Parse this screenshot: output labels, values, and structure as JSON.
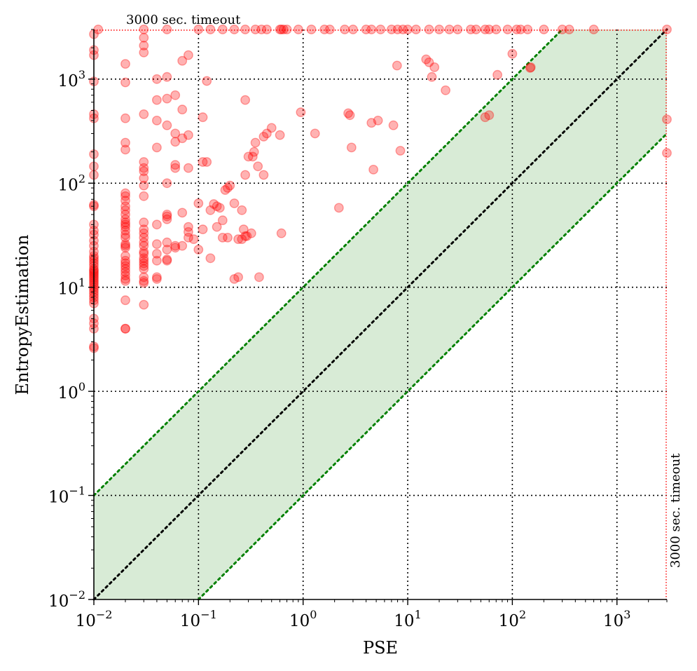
{
  "chart_data": {
    "type": "scatter",
    "xlabel": "PSE",
    "ylabel": "EntropyEstimation",
    "xscale": "log",
    "yscale": "log",
    "xlim": [
      0.01,
      3000
    ],
    "ylim": [
      0.01,
      3000
    ],
    "x_ticks": [
      {
        "base": "10",
        "exp": "−2",
        "value": 0.01
      },
      {
        "base": "10",
        "exp": "−1",
        "value": 0.1
      },
      {
        "base": "10",
        "exp": "0",
        "value": 1
      },
      {
        "base": "10",
        "exp": "1",
        "value": 10
      },
      {
        "base": "10",
        "exp": "2",
        "value": 100
      },
      {
        "base": "10",
        "exp": "3",
        "value": 1000
      }
    ],
    "y_ticks": [
      {
        "base": "10",
        "exp": "−2",
        "value": 0.01
      },
      {
        "base": "10",
        "exp": "−1",
        "value": 0.1
      },
      {
        "base": "10",
        "exp": "0",
        "value": 1
      },
      {
        "base": "10",
        "exp": "1",
        "value": 10
      },
      {
        "base": "10",
        "exp": "2",
        "value": 100
      },
      {
        "base": "10",
        "exp": "3",
        "value": 1000
      }
    ],
    "grid": true,
    "reference_lines": [
      {
        "kind": "y=x",
        "color": "#000000",
        "style": "dotted"
      },
      {
        "kind": "y=10x",
        "color": "#008000",
        "style": "dotted"
      },
      {
        "kind": "y=x/10",
        "color": "#008000",
        "style": "dotted"
      }
    ],
    "band_color": "#d8ebd6",
    "point_color": "#ff0000",
    "timeout_line_color": "#ff0000",
    "annotations": {
      "top": "3000 sec. timeout",
      "right": "3000 sec. timeout"
    },
    "points": [
      [
        0.01,
        2.6
      ],
      [
        0.01,
        2.7
      ],
      [
        0.01,
        4
      ],
      [
        0.01,
        4.5
      ],
      [
        0.01,
        5
      ],
      [
        0.01,
        7
      ],
      [
        0.01,
        7.5
      ],
      [
        0.01,
        8
      ],
      [
        0.01,
        8.5
      ],
      [
        0.01,
        9
      ],
      [
        0.01,
        9.5
      ],
      [
        0.01,
        10
      ],
      [
        0.01,
        10.5
      ],
      [
        0.01,
        11
      ],
      [
        0.01,
        11.5
      ],
      [
        0.01,
        12
      ],
      [
        0.01,
        12.5
      ],
      [
        0.01,
        13
      ],
      [
        0.01,
        13.5
      ],
      [
        0.01,
        14
      ],
      [
        0.01,
        14.5
      ],
      [
        0.01,
        15
      ],
      [
        0.01,
        16
      ],
      [
        0.01,
        17
      ],
      [
        0.01,
        18
      ],
      [
        0.01,
        19
      ],
      [
        0.01,
        20
      ],
      [
        0.01,
        22
      ],
      [
        0.01,
        25
      ],
      [
        0.01,
        28
      ],
      [
        0.01,
        32
      ],
      [
        0.01,
        35
      ],
      [
        0.01,
        40
      ],
      [
        0.01,
        60
      ],
      [
        0.01,
        62
      ],
      [
        0.01,
        120
      ],
      [
        0.01,
        145
      ],
      [
        0.01,
        190
      ],
      [
        0.01,
        420
      ],
      [
        0.01,
        460
      ],
      [
        0.01,
        950
      ],
      [
        0.01,
        1700
      ],
      [
        0.01,
        1900
      ],
      [
        0.01,
        2700
      ],
      [
        0.02,
        4
      ],
      [
        0.02,
        4
      ],
      [
        0.02,
        7.5
      ],
      [
        0.02,
        11.5
      ],
      [
        0.02,
        12
      ],
      [
        0.02,
        13
      ],
      [
        0.02,
        14
      ],
      [
        0.02,
        15
      ],
      [
        0.02,
        16
      ],
      [
        0.02,
        17
      ],
      [
        0.02,
        18
      ],
      [
        0.02,
        20
      ],
      [
        0.02,
        24
      ],
      [
        0.02,
        25
      ],
      [
        0.02,
        26
      ],
      [
        0.02,
        30
      ],
      [
        0.02,
        32
      ],
      [
        0.02,
        35
      ],
      [
        0.02,
        38
      ],
      [
        0.02,
        40
      ],
      [
        0.02,
        42
      ],
      [
        0.02,
        45
      ],
      [
        0.02,
        50
      ],
      [
        0.02,
        55
      ],
      [
        0.02,
        60
      ],
      [
        0.02,
        68
      ],
      [
        0.02,
        75
      ],
      [
        0.02,
        80
      ],
      [
        0.02,
        210
      ],
      [
        0.02,
        245
      ],
      [
        0.02,
        420
      ],
      [
        0.02,
        930
      ],
      [
        0.02,
        1400
      ],
      [
        0.03,
        6.8
      ],
      [
        0.03,
        11
      ],
      [
        0.03,
        11.5
      ],
      [
        0.03,
        12.5
      ],
      [
        0.03,
        15
      ],
      [
        0.03,
        16
      ],
      [
        0.03,
        17
      ],
      [
        0.03,
        18
      ],
      [
        0.03,
        19
      ],
      [
        0.03,
        21
      ],
      [
        0.03,
        22
      ],
      [
        0.03,
        25
      ],
      [
        0.03,
        27
      ],
      [
        0.03,
        30
      ],
      [
        0.03,
        33
      ],
      [
        0.03,
        36
      ],
      [
        0.03,
        42
      ],
      [
        0.03,
        75
      ],
      [
        0.03,
        95
      ],
      [
        0.03,
        112
      ],
      [
        0.03,
        130
      ],
      [
        0.03,
        140
      ],
      [
        0.03,
        160
      ],
      [
        0.03,
        460
      ],
      [
        0.03,
        1800
      ],
      [
        0.03,
        2100
      ],
      [
        0.03,
        2500
      ],
      [
        0.04,
        12
      ],
      [
        0.04,
        12.5
      ],
      [
        0.04,
        18
      ],
      [
        0.04,
        21
      ],
      [
        0.04,
        26
      ],
      [
        0.04,
        40
      ],
      [
        0.04,
        220
      ],
      [
        0.04,
        400
      ],
      [
        0.04,
        630
      ],
      [
        0.04,
        1000
      ],
      [
        0.05,
        18
      ],
      [
        0.05,
        18.5
      ],
      [
        0.05,
        23
      ],
      [
        0.05,
        27
      ],
      [
        0.05,
        45
      ],
      [
        0.05,
        48
      ],
      [
        0.05,
        50
      ],
      [
        0.05,
        100
      ],
      [
        0.05,
        360
      ],
      [
        0.05,
        650
      ],
      [
        0.05,
        1050
      ],
      [
        0.06,
        24
      ],
      [
        0.06,
        25
      ],
      [
        0.06,
        140
      ],
      [
        0.06,
        150
      ],
      [
        0.06,
        250
      ],
      [
        0.06,
        300
      ],
      [
        0.06,
        700
      ],
      [
        0.07,
        25
      ],
      [
        0.07,
        52
      ],
      [
        0.07,
        270
      ],
      [
        0.07,
        510
      ],
      [
        0.07,
        1500
      ],
      [
        0.08,
        30
      ],
      [
        0.08,
        34
      ],
      [
        0.08,
        38
      ],
      [
        0.08,
        140
      ],
      [
        0.08,
        290
      ],
      [
        0.08,
        1700
      ],
      [
        0.09,
        29
      ],
      [
        0.1,
        23
      ],
      [
        0.1,
        64
      ],
      [
        0.11,
        36
      ],
      [
        0.11,
        160
      ],
      [
        0.11,
        430
      ],
      [
        0.12,
        160
      ],
      [
        0.12,
        960
      ],
      [
        0.13,
        19
      ],
      [
        0.13,
        55
      ],
      [
        0.14,
        63
      ],
      [
        0.15,
        38
      ],
      [
        0.15,
        60
      ],
      [
        0.16,
        58
      ],
      [
        0.17,
        44
      ],
      [
        0.17,
        30
      ],
      [
        0.18,
        86
      ],
      [
        0.19,
        30
      ],
      [
        0.19,
        90
      ],
      [
        0.2,
        95
      ],
      [
        0.22,
        12
      ],
      [
        0.22,
        64
      ],
      [
        0.24,
        12.5
      ],
      [
        0.24,
        29
      ],
      [
        0.26,
        29
      ],
      [
        0.26,
        55
      ],
      [
        0.27,
        36
      ],
      [
        0.28,
        31
      ],
      [
        0.28,
        120
      ],
      [
        0.28,
        630
      ],
      [
        0.29,
        31
      ],
      [
        0.3,
        180
      ],
      [
        0.32,
        33
      ],
      [
        0.33,
        180
      ],
      [
        0.34,
        200
      ],
      [
        0.35,
        245
      ],
      [
        0.37,
        145
      ],
      [
        0.38,
        12.5
      ],
      [
        0.42,
        120
      ],
      [
        0.42,
        280
      ],
      [
        0.45,
        300
      ],
      [
        0.5,
        340
      ],
      [
        0.6,
        290
      ],
      [
        0.62,
        33
      ],
      [
        0.95,
        480
      ],
      [
        1.3,
        300
      ],
      [
        2.2,
        58
      ],
      [
        2.7,
        470
      ],
      [
        2.8,
        450
      ],
      [
        2.9,
        220
      ],
      [
        4.5,
        380
      ],
      [
        4.7,
        135
      ],
      [
        5.2,
        400
      ],
      [
        7.3,
        360
      ],
      [
        8.5,
        205
      ],
      [
        7.9,
        1350
      ],
      [
        15,
        1550
      ],
      [
        16,
        1450
      ],
      [
        17,
        1050
      ],
      [
        18,
        1300
      ],
      [
        23,
        780
      ],
      [
        55,
        430
      ],
      [
        60,
        450
      ],
      [
        72,
        1100
      ],
      [
        100,
        1750
      ],
      [
        150,
        1300
      ],
      [
        148,
        1280
      ],
      [
        3000,
        410
      ],
      [
        3000,
        195
      ],
      [
        3000,
        3000
      ],
      [
        0.011,
        3000
      ],
      [
        0.03,
        3000
      ],
      [
        0.05,
        3000
      ],
      [
        0.1,
        3000
      ],
      [
        0.13,
        3000
      ],
      [
        0.17,
        3000
      ],
      [
        0.22,
        3000
      ],
      [
        0.28,
        3000
      ],
      [
        0.35,
        3000
      ],
      [
        0.4,
        3000
      ],
      [
        0.45,
        3000
      ],
      [
        0.6,
        3000
      ],
      [
        0.62,
        3000
      ],
      [
        0.65,
        3000
      ],
      [
        0.7,
        3000
      ],
      [
        0.9,
        3000
      ],
      [
        1.2,
        3000
      ],
      [
        1.6,
        3000
      ],
      [
        1.8,
        3000
      ],
      [
        2.5,
        3000
      ],
      [
        3,
        3000
      ],
      [
        4,
        3000
      ],
      [
        4.5,
        3000
      ],
      [
        5.5,
        3000
      ],
      [
        7,
        3000
      ],
      [
        8,
        3000
      ],
      [
        9,
        3000
      ],
      [
        10,
        3000
      ],
      [
        12,
        3000
      ],
      [
        16,
        3000
      ],
      [
        20,
        3000
      ],
      [
        25,
        3000
      ],
      [
        30,
        3000
      ],
      [
        40,
        3000
      ],
      [
        45,
        3000
      ],
      [
        55,
        3000
      ],
      [
        60,
        3000
      ],
      [
        70,
        3000
      ],
      [
        90,
        3000
      ],
      [
        110,
        3000
      ],
      [
        120,
        3000
      ],
      [
        140,
        3000
      ],
      [
        200,
        3000
      ],
      [
        300,
        3000
      ],
      [
        350,
        3000
      ],
      [
        600,
        3000
      ]
    ]
  }
}
